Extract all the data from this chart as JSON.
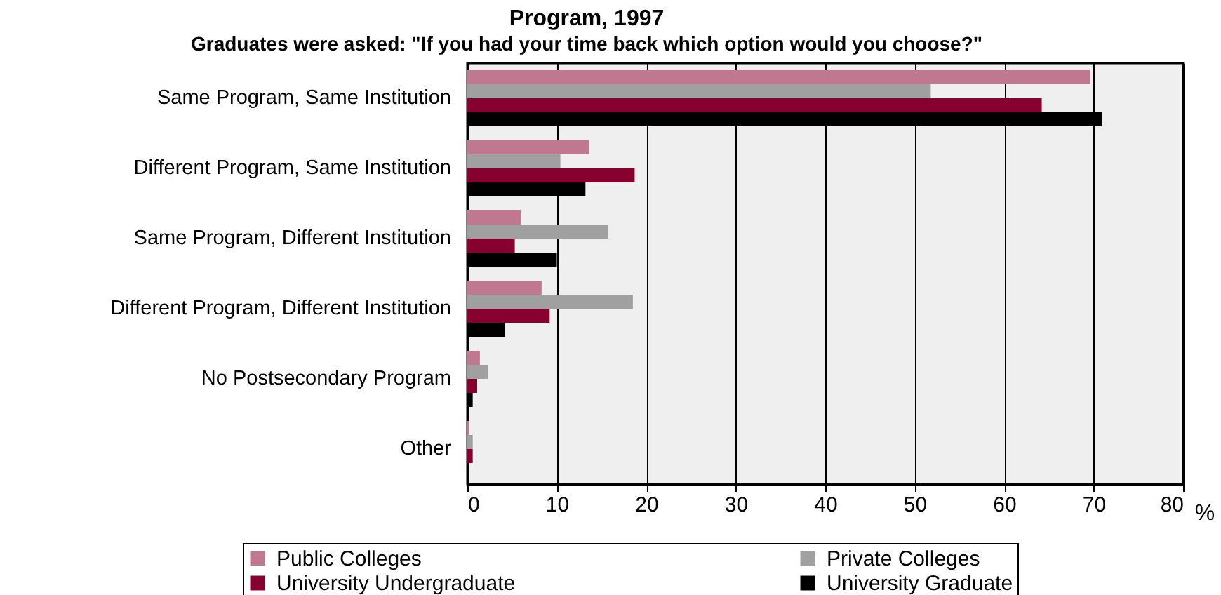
{
  "chart_data": {
    "type": "bar",
    "orientation": "horizontal",
    "title": "Program, 1997",
    "subtitle": "Graduates were asked:  \"If you had your time back which option would you choose?\"",
    "xlabel": "%",
    "categories": [
      "Same Program, Same Institution",
      "Different Program, Same Institution",
      "Same Program, Different Institution",
      "Different Program, Different Institution",
      "No Postsecondary Program",
      "Other"
    ],
    "series": [
      {
        "name": "Public Colleges",
        "color": "#c07890",
        "values": [
          69.6,
          13.6,
          6.0,
          8.3,
          1.4,
          0.2
        ]
      },
      {
        "name": "Private Colleges",
        "color": "#a0a0a0",
        "values": [
          51.8,
          10.4,
          15.7,
          18.5,
          2.3,
          0.6
        ]
      },
      {
        "name": "University Undergraduate",
        "color": "#880030",
        "values": [
          64.2,
          18.7,
          5.3,
          9.2,
          1.1,
          0.6
        ]
      },
      {
        "name": "University Graduate",
        "color": "#000000",
        "values": [
          70.9,
          13.2,
          10.0,
          4.2,
          0.6,
          0
        ]
      }
    ],
    "xlim": [
      0,
      80
    ],
    "xticks": [
      0,
      10,
      20,
      30,
      40,
      50,
      60,
      70,
      80
    ],
    "grid": "x",
    "legend": "bottom"
  }
}
